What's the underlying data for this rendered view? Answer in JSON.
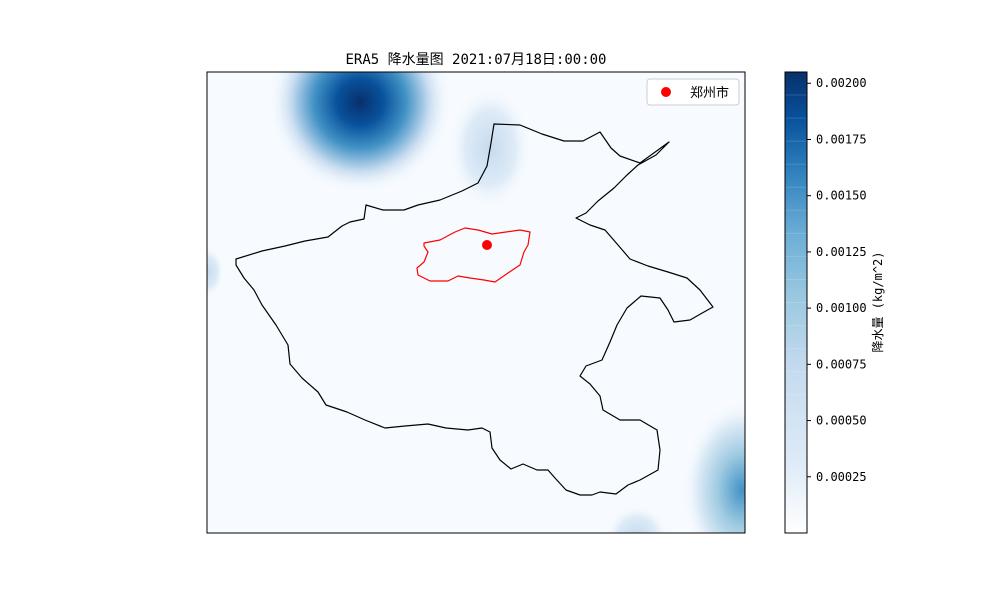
{
  "figure": {
    "title": "ERA5 降水量图 2021:07月18日:00:00"
  },
  "legend": {
    "entries": [
      {
        "label": "郑州市",
        "color": "#ff0000",
        "marker": "circle"
      }
    ],
    "placement": "upper-right"
  },
  "colorbar": {
    "label": "降水量 (kg/m^2)",
    "colormap": "Blues",
    "range": [
      0,
      0.00205
    ],
    "levels": 20,
    "ticks": [
      "0.00025",
      "0.00050",
      "0.00075",
      "0.00100",
      "0.00125",
      "0.00150",
      "0.00175",
      "0.00200"
    ]
  },
  "map": {
    "province_outline_color": "#000000",
    "city_outline_color": "#ff0000",
    "city_marker": {
      "name": "郑州市",
      "color": "#ff0000"
    },
    "background_color": "#f7fbff"
  },
  "chart_data": {
    "type": "heatmap",
    "title": "ERA5 降水量图 2021:07月18日:00:00",
    "variable": "降水量",
    "units": "kg/m^2",
    "colorbar_range": [
      0,
      0.00205
    ],
    "precipitation_cells": [
      {
        "region": "north",
        "approx_max": 0.0021
      },
      {
        "region": "north-center",
        "approx_max": 0.0003
      },
      {
        "region": "southeast",
        "approx_max": 0.0012
      },
      {
        "region": "west-edge",
        "approx_max": 0.0002
      },
      {
        "region": "south-bottom",
        "approx_max": 0.0002
      }
    ],
    "series": [
      {
        "name": "郑州市",
        "type": "point"
      }
    ]
  }
}
